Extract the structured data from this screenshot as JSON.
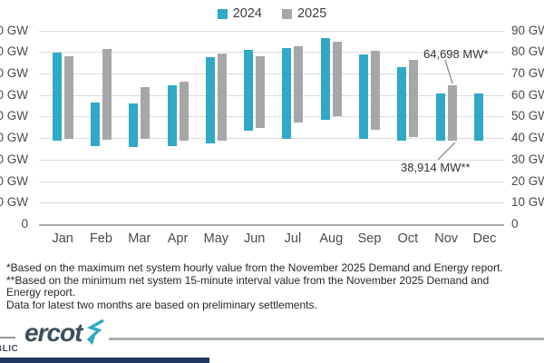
{
  "legend": {
    "items": [
      {
        "label": "2024",
        "color": "#2fa9c5"
      },
      {
        "label": "2025",
        "color": "#a7a7a7"
      }
    ]
  },
  "chart_data": {
    "type": "bar",
    "variant": "floating-range-columns",
    "title": "",
    "xlabel": "",
    "ylabel": "GW",
    "unit": "GW",
    "categories": [
      "Jan",
      "Feb",
      "Mar",
      "Apr",
      "May",
      "Jun",
      "Jul",
      "Aug",
      "Sep",
      "Oct",
      "Nov",
      "Dec"
    ],
    "series": [
      {
        "name": "2024",
        "color": "#2fa9c5",
        "ranges": [
          [
            38.9,
            79.8
          ],
          [
            36.3,
            56.6
          ],
          [
            35.9,
            56.2
          ],
          [
            36.3,
            64.6
          ],
          [
            37.6,
            77.7
          ],
          [
            43.5,
            81.0
          ],
          [
            39.7,
            81.9
          ],
          [
            48.6,
            86.5
          ],
          [
            39.7,
            78.9
          ],
          [
            38.9,
            73.0
          ],
          [
            38.9,
            60.8
          ],
          [
            38.9,
            60.8
          ]
        ]
      },
      {
        "name": "2025",
        "color": "#a7a7a7",
        "ranges": [
          [
            39.7,
            78.1
          ],
          [
            39.3,
            81.4
          ],
          [
            39.7,
            63.7
          ],
          [
            38.9,
            66.3
          ],
          [
            38.9,
            79.3
          ],
          [
            44.8,
            78.1
          ],
          [
            47.3,
            82.7
          ],
          [
            50.2,
            84.8
          ],
          [
            43.9,
            80.6
          ],
          [
            40.6,
            76.4
          ],
          [
            38.914,
            64.698
          ],
          null
        ]
      }
    ],
    "ylim": [
      0,
      90
    ],
    "ytick_step": 10,
    "ytick_values": [
      90,
      80,
      70,
      60,
      50,
      40,
      30,
      20,
      10,
      0
    ],
    "ytick_labels": [
      "90 GW",
      "80 GW",
      "70 GW",
      "60 GW",
      "50 GW",
      "40 GW",
      "30 GW",
      "20 GW",
      "10 GW",
      "0"
    ],
    "dual_y_axis": true,
    "grid": true,
    "legend_position": "top-center",
    "annotations": [
      {
        "text": "64,698 MW*",
        "series": "2025",
        "category": "Nov",
        "point": "max"
      },
      {
        "text": "38,914 MW**",
        "series": "2025",
        "category": "Nov",
        "point": "min"
      }
    ]
  },
  "footnotes": [
    "*Based on the maximum net system hourly value from the November 2025 Demand and Energy report.",
    "**Based on the minimum net system 15-minute interval value from the November 2025 Demand and Energy report.",
    "Data for latest two months are based on preliminary settlements."
  ],
  "footer": {
    "logo_text": "ercot",
    "classification": "PUBLIC"
  },
  "colors": {
    "teal": "#2fa9c5",
    "gray": "#a7a7a7",
    "gridline": "#dcdcdc",
    "axis_line": "#ababab",
    "axis_text": "#4a4a4a",
    "annotation_line": "#808080",
    "logo_slate": "#3c4f5c",
    "navy_bar": "#1f3864"
  }
}
